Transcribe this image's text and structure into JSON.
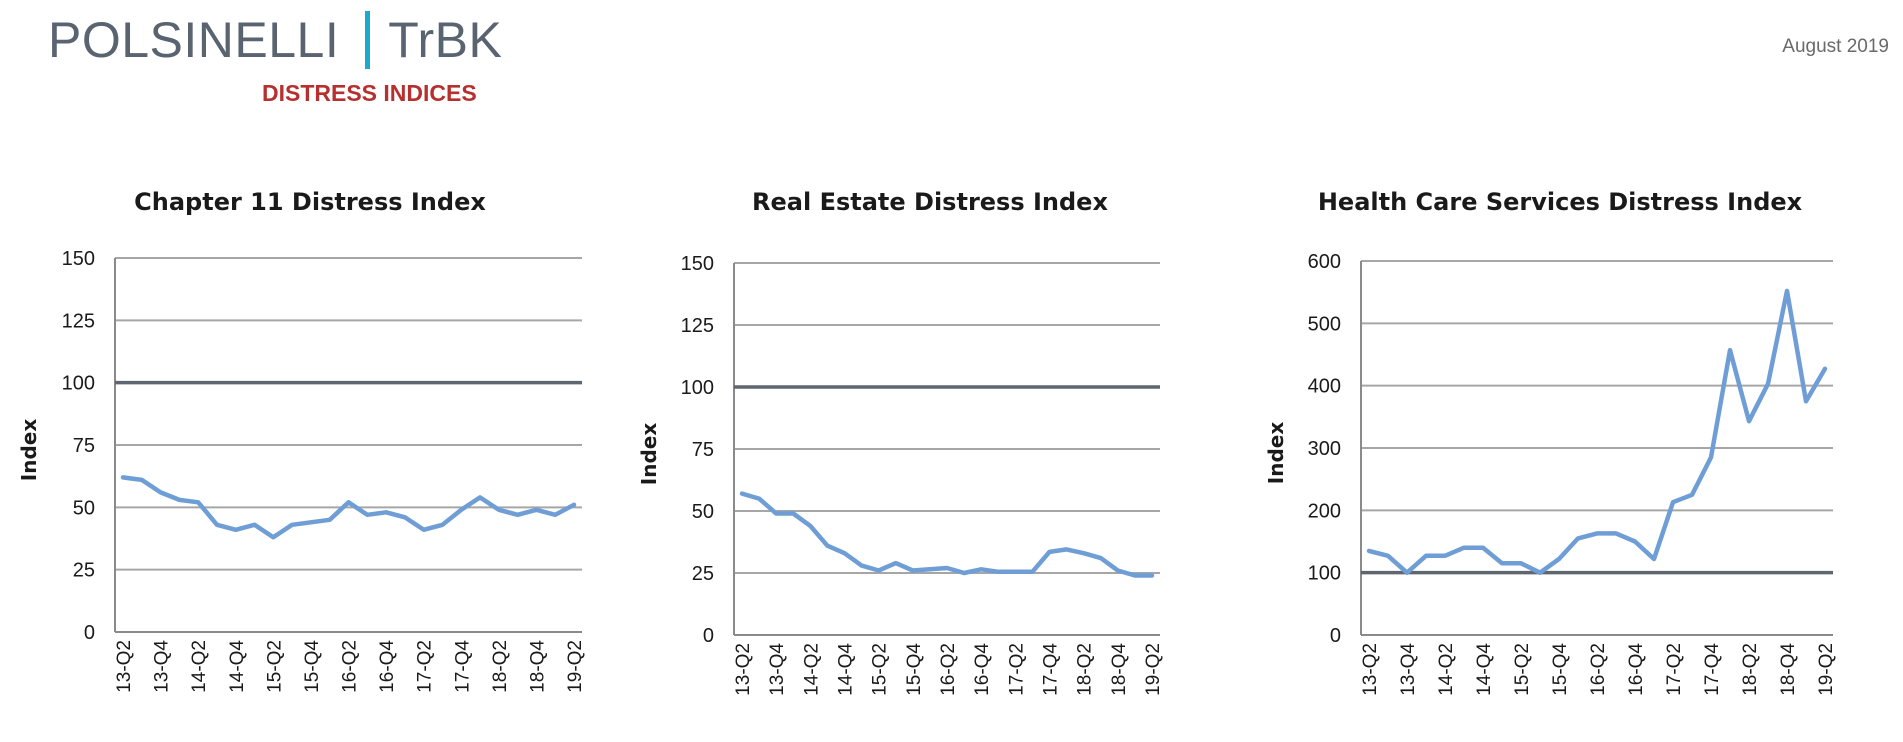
{
  "header": {
    "brand_left": "POLSINELLI",
    "brand_right": "TrBK",
    "subtitle": "DISTRESS INDICES",
    "date": "August 2019"
  },
  "colors": {
    "series": "#6f9ed6",
    "baseline": "#5f6670",
    "grid": "#a6a6a6",
    "brand_bar": "#1ea7cf",
    "subtitle": "#b5302e"
  },
  "chart_data": [
    {
      "type": "line",
      "title": "Chapter 11 Distress Index",
      "ylabel": "Index",
      "xlabel": "",
      "ylim": [
        0,
        150
      ],
      "yticks": [
        0,
        25,
        50,
        75,
        100,
        125,
        150
      ],
      "x": [
        "13-Q2",
        "13-Q3",
        "13-Q4",
        "14-Q1",
        "14-Q2",
        "14-Q3",
        "14-Q4",
        "15-Q1",
        "15-Q2",
        "15-Q3",
        "15-Q4",
        "16-Q1",
        "16-Q2",
        "16-Q3",
        "16-Q4",
        "17-Q1",
        "17-Q2",
        "17-Q3",
        "17-Q4",
        "18-Q1",
        "18-Q2",
        "18-Q3",
        "18-Q4",
        "19-Q1",
        "19-Q2"
      ],
      "xtick_labels": [
        "13-Q2",
        "13-Q4",
        "14-Q2",
        "14-Q4",
        "15-Q2",
        "15-Q4",
        "16-Q2",
        "16-Q4",
        "17-Q2",
        "17-Q4",
        "18-Q2",
        "18-Q4",
        "19-Q2"
      ],
      "reference_line": 100,
      "grid": true,
      "legend": "none",
      "values": [
        62,
        61,
        56,
        53,
        52,
        43,
        41,
        43,
        38,
        43,
        44,
        45,
        52,
        47,
        48,
        46,
        41,
        43,
        49,
        54,
        49,
        47,
        49,
        47,
        51
      ]
    },
    {
      "type": "line",
      "title": "Real Estate Distress Index",
      "ylabel": "Index",
      "xlabel": "",
      "ylim": [
        0,
        150
      ],
      "yticks": [
        0,
        25,
        50,
        75,
        100,
        125,
        150
      ],
      "x": [
        "13-Q2",
        "13-Q3",
        "13-Q4",
        "14-Q1",
        "14-Q2",
        "14-Q3",
        "14-Q4",
        "15-Q1",
        "15-Q2",
        "15-Q3",
        "15-Q4",
        "16-Q1",
        "16-Q2",
        "16-Q3",
        "16-Q4",
        "17-Q1",
        "17-Q2",
        "17-Q3",
        "17-Q4",
        "18-Q1",
        "18-Q2",
        "18-Q3",
        "18-Q4",
        "19-Q1",
        "19-Q2"
      ],
      "xtick_labels": [
        "13-Q2",
        "13-Q4",
        "14-Q2",
        "14-Q4",
        "15-Q2",
        "15-Q4",
        "16-Q2",
        "16-Q4",
        "17-Q2",
        "17-Q4",
        "18-Q2",
        "18-Q4",
        "19-Q2"
      ],
      "reference_line": 100,
      "grid": true,
      "legend": "none",
      "values": [
        57,
        55,
        49,
        49,
        44,
        36,
        33,
        28,
        26,
        29,
        26,
        26.5,
        27,
        25,
        26.5,
        25.5,
        25.5,
        25.5,
        33.5,
        34.5,
        33,
        31,
        26,
        24,
        24
      ]
    },
    {
      "type": "line",
      "title": "Health Care Services Distress Index",
      "ylabel": "Index",
      "xlabel": "",
      "ylim": [
        0,
        600
      ],
      "yticks": [
        0,
        100,
        200,
        300,
        400,
        500,
        600
      ],
      "x": [
        "13-Q2",
        "13-Q3",
        "13-Q4",
        "14-Q1",
        "14-Q2",
        "14-Q3",
        "14-Q4",
        "15-Q1",
        "15-Q2",
        "15-Q3",
        "15-Q4",
        "16-Q1",
        "16-Q2",
        "16-Q3",
        "16-Q4",
        "17-Q1",
        "17-Q2",
        "17-Q3",
        "17-Q4",
        "18-Q1",
        "18-Q2",
        "18-Q3",
        "18-Q4",
        "19-Q1",
        "19-Q2"
      ],
      "xtick_labels": [
        "13-Q2",
        "13-Q4",
        "14-Q2",
        "14-Q4",
        "15-Q2",
        "15-Q4",
        "16-Q2",
        "16-Q4",
        "17-Q2",
        "17-Q4",
        "18-Q2",
        "18-Q4",
        "19-Q2"
      ],
      "reference_line": 100,
      "grid": true,
      "legend": "none",
      "values": [
        135,
        127,
        100,
        127,
        127,
        140,
        140,
        115,
        115,
        100,
        122,
        155,
        163,
        163,
        150,
        122,
        213,
        225,
        285,
        457,
        343,
        403,
        552,
        375,
        427
      ]
    }
  ]
}
